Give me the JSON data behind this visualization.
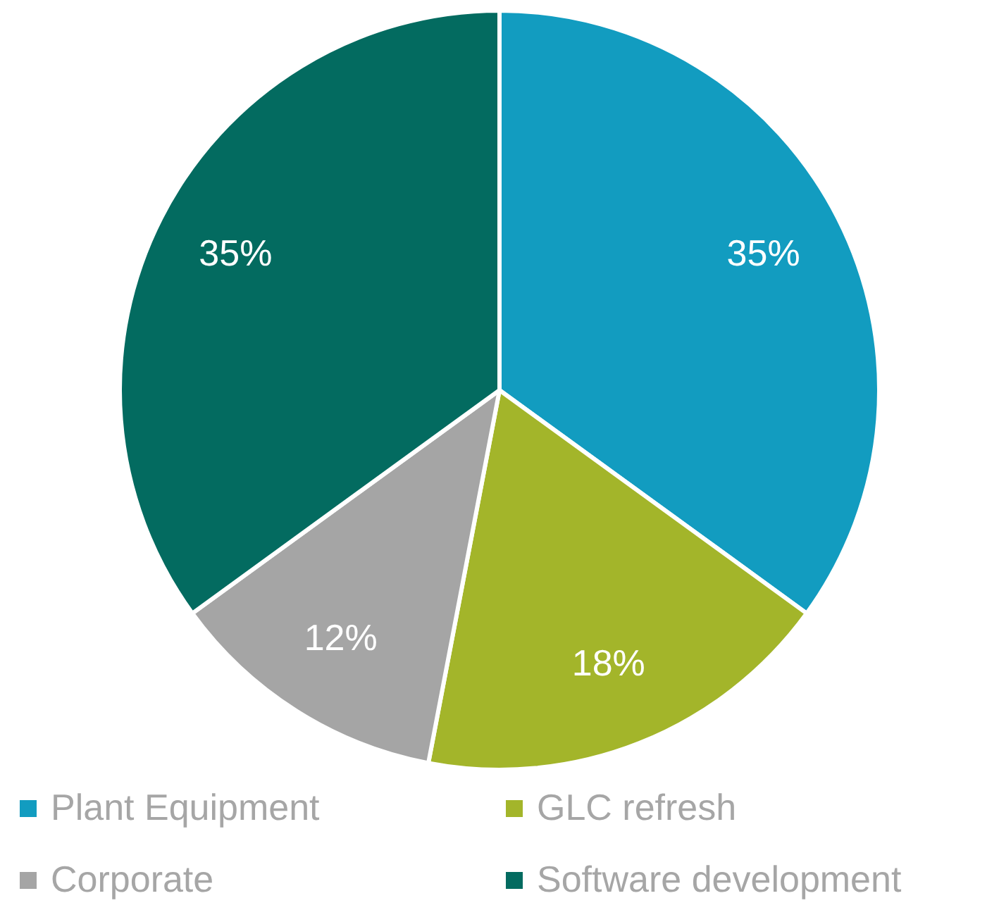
{
  "chart_data": {
    "type": "pie",
    "categories": [
      "Plant Equipment",
      "GLC refresh",
      "Corporate",
      "Software development"
    ],
    "values": [
      35,
      18,
      12,
      35
    ],
    "colors": [
      "#129cc0",
      "#a3b52a",
      "#a5a5a5",
      "#036b60"
    ],
    "value_labels": [
      "35%",
      "18%",
      "12%",
      "35%"
    ],
    "legend": "bottom"
  }
}
